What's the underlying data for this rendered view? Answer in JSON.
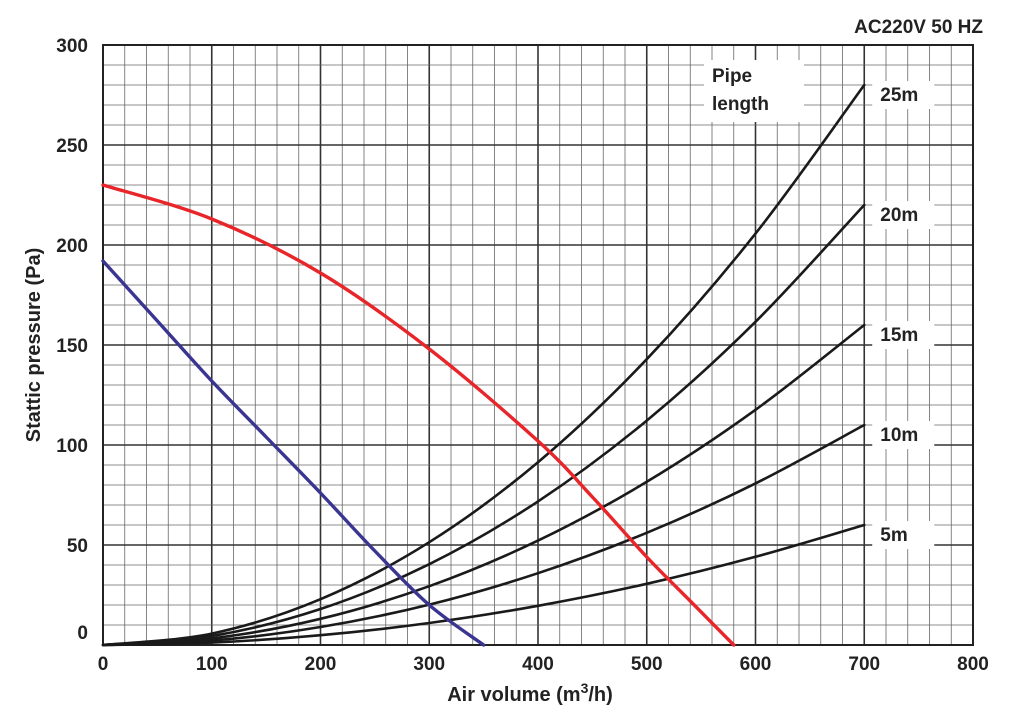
{
  "chart_data": {
    "type": "line",
    "title": "",
    "annotation": "AC220V 50 HZ",
    "xlabel_main": "Air volume (m",
    "xlabel_sup": "3",
    "xlabel_tail": "/h)",
    "ylabel": "Stattic pressure (Pa)",
    "xlim": [
      0,
      800
    ],
    "ylim": [
      0,
      300
    ],
    "x_ticks": [
      "0",
      "100",
      "200",
      "300",
      "400",
      "500",
      "600",
      "700",
      "800"
    ],
    "y_ticks": [
      "0",
      "50",
      "100",
      "150",
      "200",
      "250",
      "300"
    ],
    "grid": true,
    "legend_title_line1": "Pipe",
    "legend_title_line2": "length",
    "series": [
      {
        "name": "25m",
        "color": "#1a1a1a",
        "x": [
          0,
          100,
          200,
          300,
          400,
          500,
          600,
          700
        ],
        "y": [
          0,
          5.7,
          22.9,
          51.4,
          91.4,
          142.9,
          205.7,
          280
        ]
      },
      {
        "name": "20m",
        "color": "#1a1a1a",
        "x": [
          0,
          100,
          200,
          300,
          400,
          500,
          600,
          700
        ],
        "y": [
          0,
          4.5,
          18,
          40.4,
          71.8,
          112.2,
          161.6,
          220
        ]
      },
      {
        "name": "15m",
        "color": "#1a1a1a",
        "x": [
          0,
          100,
          200,
          300,
          400,
          500,
          600,
          700
        ],
        "y": [
          0,
          3.3,
          13.1,
          29.4,
          52.2,
          81.6,
          117.6,
          160
        ]
      },
      {
        "name": "10m",
        "color": "#1a1a1a",
        "x": [
          0,
          100,
          200,
          300,
          400,
          500,
          600,
          700
        ],
        "y": [
          0,
          2.2,
          9,
          20.2,
          35.9,
          56.1,
          80.8,
          110
        ]
      },
      {
        "name": "5m",
        "color": "#1a1a1a",
        "x": [
          0,
          100,
          200,
          300,
          400,
          500,
          600,
          700
        ],
        "y": [
          0,
          1.2,
          4.9,
          11,
          19.6,
          30.6,
          44.1,
          60
        ]
      },
      {
        "color": "#e8262a",
        "x": [
          0,
          100,
          200,
          300,
          400,
          450,
          500,
          540,
          580
        ],
        "y": [
          230,
          213,
          186,
          148,
          102,
          74,
          44,
          22,
          0
        ]
      },
      {
        "color": "#3a3590",
        "x": [
          0,
          50,
          100,
          150,
          200,
          250,
          300,
          350
        ],
        "y": [
          192,
          162,
          132,
          104,
          76,
          47,
          20,
          0
        ]
      }
    ]
  }
}
